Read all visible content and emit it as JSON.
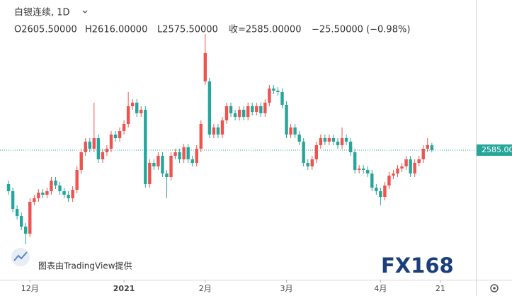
{
  "header": {
    "symbol": "白银连续, 1D",
    "open": "O2605.50000",
    "high": "H2616.00000",
    "low": "L2575.50000",
    "close": "收=2585.00000",
    "change": "−25.50000 (−0.98%)"
  },
  "chart_data": {
    "type": "candlestick",
    "open": [
      2441,
      2411,
      2336,
      2306,
      2261,
      2231,
      2366,
      2381,
      2405,
      2396,
      2411,
      2456,
      2435,
      2411,
      2396,
      2381,
      2417,
      2501,
      2576,
      2621,
      2591,
      2636,
      2546,
      2576,
      2591,
      2651,
      2636,
      2666,
      2696,
      2771,
      2786,
      2741,
      2756,
      2441,
      2531,
      2516,
      2561,
      2486,
      2471,
      2561,
      2576,
      2546,
      2597,
      2546,
      2531,
      2591,
      2876,
      2876,
      2651,
      2681,
      2651,
      2711,
      2771,
      2741,
      2726,
      2756,
      2726,
      2771,
      2747,
      2771,
      2741,
      2786,
      2846,
      2837,
      2831,
      2777,
      2651,
      2681,
      2651,
      2621,
      2531,
      2516,
      2546,
      2606,
      2636,
      2621,
      2636,
      2621,
      2606,
      2636,
      2621,
      2576,
      2501,
      2507,
      2501,
      2486,
      2426,
      2411,
      2387,
      2435,
      2477,
      2486,
      2507,
      2516,
      2546,
      2486,
      2531,
      2546,
      2591,
      2605.5
    ],
    "high": [
      2456,
      2426,
      2351,
      2321,
      2276,
      2381,
      2396,
      2420,
      2420,
      2426,
      2471,
      2471,
      2450,
      2426,
      2411,
      2432,
      2516,
      2591,
      2636,
      2636,
      2786,
      2651,
      2591,
      2606,
      2666,
      2666,
      2681,
      2711,
      2831,
      2801,
      2801,
      2771,
      2771,
      2546,
      2546,
      2576,
      2576,
      2501,
      2576,
      2591,
      2591,
      2612,
      2612,
      2561,
      2606,
      2711,
      3077,
      2891,
      2696,
      2696,
      2726,
      2786,
      2786,
      2756,
      2771,
      2771,
      2786,
      2786,
      2786,
      2786,
      2801,
      2861,
      2861,
      2852,
      2846,
      2792,
      2696,
      2696,
      2666,
      2636,
      2546,
      2561,
      2621,
      2651,
      2651,
      2651,
      2651,
      2636,
      2681,
      2651,
      2636,
      2591,
      2522,
      2522,
      2516,
      2501,
      2441,
      2426,
      2450,
      2492,
      2501,
      2522,
      2531,
      2561,
      2561,
      2546,
      2561,
      2606,
      2636,
      2616
    ],
    "low": [
      2396,
      2321,
      2291,
      2246,
      2186,
      2216,
      2351,
      2366,
      2381,
      2381,
      2396,
      2420,
      2396,
      2381,
      2366,
      2366,
      2402,
      2486,
      2561,
      2576,
      2576,
      2531,
      2531,
      2561,
      2576,
      2621,
      2621,
      2651,
      2681,
      2756,
      2726,
      2726,
      2426,
      2426,
      2501,
      2501,
      2471,
      2381,
      2456,
      2546,
      2531,
      2531,
      2531,
      2516,
      2516,
      2576,
      2861,
      2636,
      2636,
      2636,
      2636,
      2696,
      2726,
      2711,
      2711,
      2711,
      2711,
      2732,
      2732,
      2726,
      2726,
      2771,
      2822,
      2816,
      2762,
      2636,
      2636,
      2636,
      2606,
      2516,
      2501,
      2501,
      2531,
      2591,
      2606,
      2606,
      2606,
      2591,
      2591,
      2606,
      2561,
      2486,
      2486,
      2486,
      2471,
      2411,
      2396,
      2351,
      2372,
      2420,
      2462,
      2471,
      2492,
      2501,
      2471,
      2471,
      2516,
      2531,
      2576,
      2575.5
    ],
    "close": [
      2411,
      2336,
      2306,
      2261,
      2231,
      2366,
      2381,
      2405,
      2396,
      2411,
      2456,
      2435,
      2411,
      2396,
      2381,
      2417,
      2501,
      2576,
      2621,
      2591,
      2636,
      2546,
      2576,
      2591,
      2651,
      2636,
      2666,
      2696,
      2771,
      2786,
      2741,
      2756,
      2441,
      2531,
      2516,
      2561,
      2486,
      2471,
      2561,
      2576,
      2546,
      2597,
      2546,
      2531,
      2591,
      2696,
      2996,
      2651,
      2681,
      2651,
      2711,
      2771,
      2741,
      2726,
      2756,
      2726,
      2771,
      2747,
      2771,
      2741,
      2786,
      2846,
      2837,
      2831,
      2777,
      2651,
      2681,
      2651,
      2621,
      2531,
      2516,
      2546,
      2606,
      2636,
      2621,
      2636,
      2621,
      2606,
      2636,
      2621,
      2576,
      2501,
      2507,
      2501,
      2486,
      2426,
      2411,
      2387,
      2435,
      2477,
      2486,
      2507,
      2516,
      2546,
      2486,
      2531,
      2546,
      2591,
      2606,
      2585
    ],
    "up_color": "#ef5350",
    "down_color": "#26a69a",
    "xlim": [
      -2,
      109.3
    ],
    "xticks": [
      {
        "value": 5,
        "label": "12月"
      },
      {
        "value": 27,
        "label": "2021"
      },
      {
        "value": 46,
        "label": "2月"
      },
      {
        "value": 65,
        "label": "3月"
      },
      {
        "value": 87,
        "label": "4月"
      },
      {
        "value": 101,
        "label": "21"
      }
    ],
    "ylim": [
      2036,
      3221
    ],
    "last_price": {
      "value": 2585,
      "label": "2585.00"
    }
  },
  "watermark": "图表由TradingView提供",
  "logo": "FX168"
}
